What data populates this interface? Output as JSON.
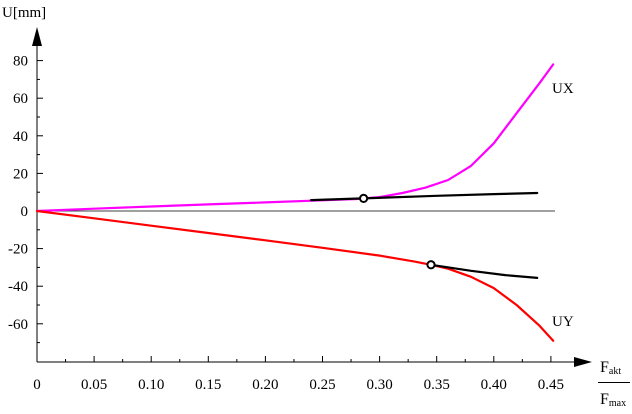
{
  "chart_data": {
    "type": "line",
    "title": "",
    "ylabel": "U[mm]",
    "xlabel": {
      "numerator": "F",
      "numerator_sub": "akt",
      "denominator": "F",
      "denominator_sub": "max"
    },
    "xlim": [
      0,
      0.47
    ],
    "ylim": [
      -78,
      88
    ],
    "x_ticks": [
      0,
      0.05,
      0.1,
      0.15,
      0.2,
      0.25,
      0.3,
      0.35,
      0.4,
      0.45
    ],
    "x_tick_labels": [
      "0",
      "0.05",
      "0.10",
      "0.15",
      "0.20",
      "0.25",
      "0.30",
      "0.35",
      "0.40",
      "0.45"
    ],
    "y_ticks": [
      -60,
      -40,
      -20,
      0,
      20,
      40,
      60,
      80
    ],
    "y_tick_labels": [
      "-60",
      "-40",
      "-20",
      "0",
      "20",
      "40",
      "60",
      "80"
    ],
    "grid": false,
    "series": [
      {
        "name": "UX",
        "color": "#ff00ff",
        "points": [
          [
            0,
            0
          ],
          [
            0.05,
            1.2
          ],
          [
            0.1,
            2.4
          ],
          [
            0.15,
            3.5
          ],
          [
            0.2,
            4.6
          ],
          [
            0.25,
            5.7
          ],
          [
            0.28,
            6.4
          ],
          [
            0.3,
            7.4
          ],
          [
            0.32,
            9.6
          ],
          [
            0.34,
            12.4
          ],
          [
            0.36,
            16.5
          ],
          [
            0.38,
            24
          ],
          [
            0.4,
            36
          ],
          [
            0.42,
            52
          ],
          [
            0.44,
            68
          ],
          [
            0.452,
            78
          ]
        ]
      },
      {
        "name": "UY",
        "color": "#ff0000",
        "points": [
          [
            0,
            0
          ],
          [
            0.05,
            -3.9
          ],
          [
            0.1,
            -7.8
          ],
          [
            0.15,
            -11.7
          ],
          [
            0.2,
            -15.6
          ],
          [
            0.25,
            -19.6
          ],
          [
            0.3,
            -23.7
          ],
          [
            0.33,
            -26.8
          ],
          [
            0.345,
            -28.6
          ],
          [
            0.36,
            -30.7
          ],
          [
            0.38,
            -35
          ],
          [
            0.4,
            -41
          ],
          [
            0.42,
            -50
          ],
          [
            0.44,
            -61
          ],
          [
            0.452,
            -69
          ]
        ]
      },
      {
        "color": "#000000",
        "points": [
          [
            0.24,
            5.8
          ],
          [
            0.285,
            6.7
          ],
          [
            0.35,
            8.1
          ],
          [
            0.4,
            9.0
          ],
          [
            0.438,
            9.6
          ]
        ]
      },
      {
        "color": "#000000",
        "points": [
          [
            0.345,
            -28.6
          ],
          [
            0.38,
            -31.8
          ],
          [
            0.41,
            -34.1
          ],
          [
            0.438,
            -35.6
          ]
        ]
      }
    ],
    "markers": [
      {
        "x": 0.286,
        "y": 6.7,
        "shape": "open-circle"
      },
      {
        "x": 0.345,
        "y": -28.6,
        "shape": "open-circle"
      }
    ]
  }
}
